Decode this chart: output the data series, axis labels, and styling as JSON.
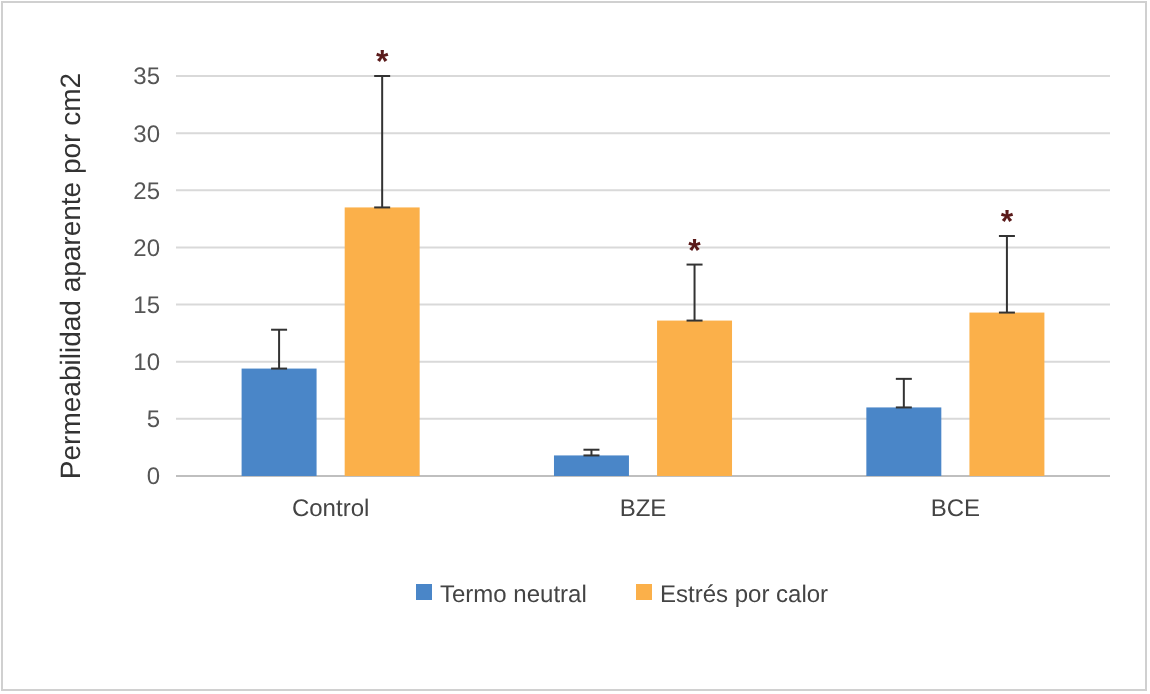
{
  "chart_data": {
    "type": "bar",
    "ylabel": "Permeabilidad aparente  por cm2",
    "categories": [
      "Control",
      "BZE",
      "BCE"
    ],
    "series": [
      {
        "name": "Termo neutral",
        "color": "#4a86c8",
        "values": [
          9.4,
          1.8,
          6.0
        ],
        "errors": [
          [
            9.4,
            12.8
          ],
          [
            1.8,
            2.3
          ],
          [
            6.0,
            8.5
          ]
        ]
      },
      {
        "name": "Estrés por calor",
        "color": "#fbb04a",
        "values": [
          23.5,
          13.6,
          14.3
        ],
        "errors": [
          [
            23.5,
            35
          ],
          [
            13.6,
            18.5
          ],
          [
            14.3,
            21
          ]
        ]
      }
    ],
    "ylim": [
      0,
      35
    ],
    "yticks": [
      0,
      5,
      10,
      15,
      20,
      25,
      30,
      35
    ],
    "grid": "y",
    "legend": "bottom",
    "annotations": [
      "*",
      "*",
      "*"
    ]
  }
}
